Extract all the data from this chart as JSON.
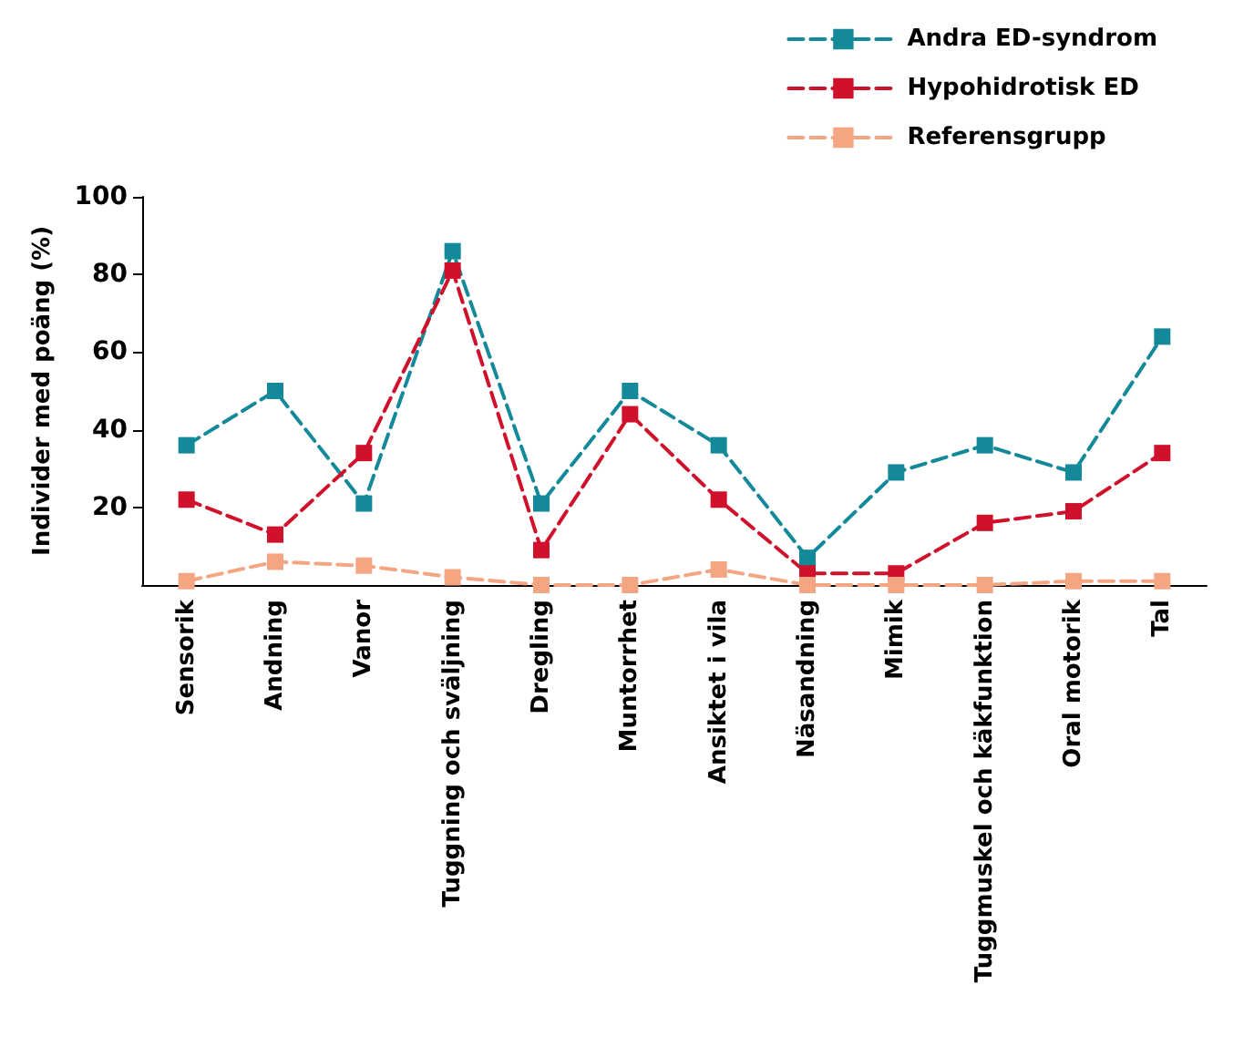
{
  "chart_data": {
    "type": "line",
    "ylabel": "Individer med poäng (%)",
    "categories": [
      "Sensorik",
      "Andning",
      "Vanor",
      "Tuggning och sväljning",
      "Dregling",
      "Muntorrhet",
      "Ansiktet i vila",
      "Näsandning",
      "Mimik",
      "Tuggmuskel och käkfunktion",
      "Oral motorik",
      "Tal"
    ],
    "series": [
      {
        "name": "Andra ED-syndrom",
        "color": "#14899a",
        "values": [
          36,
          50,
          21,
          86,
          21,
          50,
          36,
          7,
          29,
          36,
          29,
          64
        ]
      },
      {
        "name": "Hypohidrotisk ED",
        "color": "#d0112b",
        "values": [
          22,
          13,
          34,
          81,
          9,
          44,
          22,
          3,
          3,
          16,
          19,
          34
        ]
      },
      {
        "name": "Referensgrupp",
        "color": "#f4a582",
        "values": [
          1,
          6,
          5,
          2,
          0,
          0,
          4,
          0,
          0,
          0,
          1,
          1
        ]
      }
    ],
    "ylim": [
      0,
      100
    ],
    "yticks": [
      20,
      40,
      60,
      80,
      100
    ],
    "grid": false,
    "legend": "top right",
    "marker": "square",
    "line_style": "dashed"
  }
}
